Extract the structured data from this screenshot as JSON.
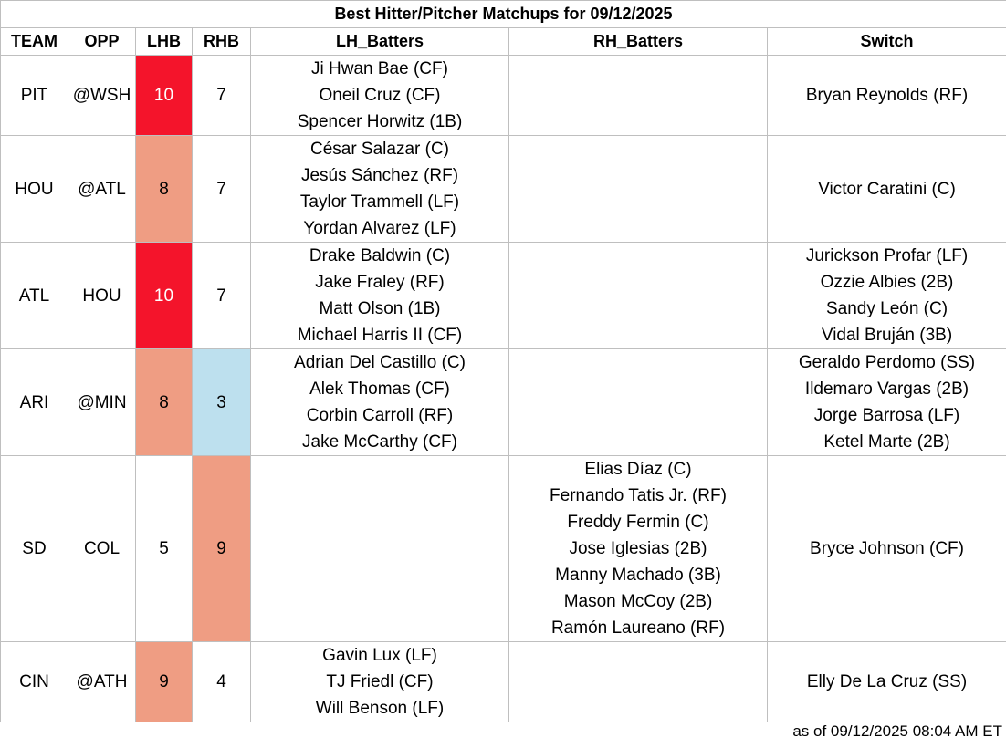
{
  "title": "Best Hitter/Pitcher Matchups for 09/12/2025",
  "headers": {
    "team": "TEAM",
    "opp": "OPP",
    "lhb": "LHB",
    "rhb": "RHB",
    "lh_batters": "LH_Batters",
    "rh_batters": "RH_Batters",
    "switch": "Switch"
  },
  "colors": {
    "high": "#f4142b",
    "medium": "#ef9d83",
    "low": "#bde0ee",
    "none": "#ffffff"
  },
  "rows": [
    {
      "team": "PIT",
      "opp": "@WSH",
      "lhb": "10",
      "rhb": "7",
      "lhb_level": "high",
      "rhb_level": "none",
      "lh_batters": [
        "Ji Hwan Bae (CF)",
        "Oneil Cruz (CF)",
        "Spencer Horwitz (1B)"
      ],
      "rh_batters": [],
      "switch": [
        "Bryan Reynolds (RF)"
      ]
    },
    {
      "team": "HOU",
      "opp": "@ATL",
      "lhb": "8",
      "rhb": "7",
      "lhb_level": "medium",
      "rhb_level": "none",
      "lh_batters": [
        "César Salazar (C)",
        "Jesús Sánchez (RF)",
        "Taylor Trammell (LF)",
        "Yordan Alvarez (LF)"
      ],
      "rh_batters": [],
      "switch": [
        "Victor Caratini (C)"
      ]
    },
    {
      "team": "ATL",
      "opp": "HOU",
      "lhb": "10",
      "rhb": "7",
      "lhb_level": "high",
      "rhb_level": "none",
      "lh_batters": [
        "Drake Baldwin (C)",
        "Jake Fraley (RF)",
        "Matt Olson (1B)",
        "Michael Harris II (CF)"
      ],
      "rh_batters": [],
      "switch": [
        "Jurickson Profar (LF)",
        "Ozzie Albies (2B)",
        "Sandy León (C)",
        "Vidal Bruján (3B)"
      ]
    },
    {
      "team": "ARI",
      "opp": "@MIN",
      "lhb": "8",
      "rhb": "3",
      "lhb_level": "medium",
      "rhb_level": "low",
      "lh_batters": [
        "Adrian Del Castillo (C)",
        "Alek Thomas (CF)",
        "Corbin Carroll (RF)",
        "Jake McCarthy (CF)"
      ],
      "rh_batters": [],
      "switch": [
        "Geraldo Perdomo (SS)",
        "Ildemaro Vargas (2B)",
        "Jorge Barrosa (LF)",
        "Ketel Marte (2B)"
      ]
    },
    {
      "team": "SD",
      "opp": "COL",
      "lhb": "5",
      "rhb": "9",
      "lhb_level": "none",
      "rhb_level": "medium",
      "lh_batters": [],
      "rh_batters": [
        "Elias Díaz (C)",
        "Fernando Tatis Jr. (RF)",
        "Freddy Fermin (C)",
        "Jose Iglesias (2B)",
        "Manny Machado (3B)",
        "Mason McCoy (2B)",
        "Ramón Laureano (RF)"
      ],
      "switch": [
        "Bryce Johnson (CF)"
      ]
    },
    {
      "team": "CIN",
      "opp": "@ATH",
      "lhb": "9",
      "rhb": "4",
      "lhb_level": "medium",
      "rhb_level": "none",
      "lh_batters": [
        "Gavin Lux (LF)",
        "TJ Friedl (CF)",
        "Will Benson (LF)"
      ],
      "rh_batters": [],
      "switch": [
        "Elly De La Cruz (SS)"
      ]
    }
  ],
  "footer": "as of 09/12/2025 08:04 AM ET"
}
